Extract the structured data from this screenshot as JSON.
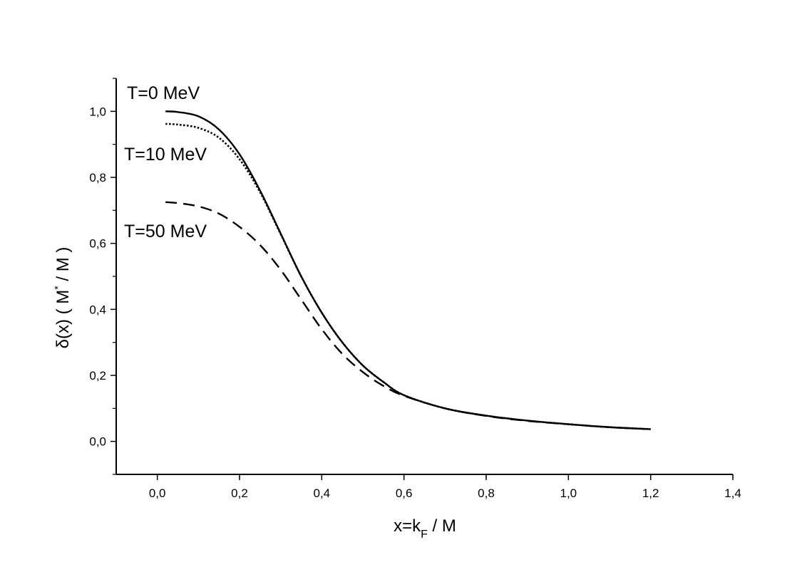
{
  "chart_data": {
    "type": "line",
    "title": "",
    "xlabel": {
      "main": "x=k",
      "sub": "F",
      "tail": " / M"
    },
    "ylabel": {
      "main": "δ(x) ( M",
      "sup": "*",
      "tail": " / M )"
    },
    "xlim": [
      -0.1,
      1.4
    ],
    "ylim": [
      -0.1,
      1.1
    ],
    "x_ticks": [
      {
        "value": 0.0,
        "label": "0,0"
      },
      {
        "value": 0.2,
        "label": "0,2"
      },
      {
        "value": 0.4,
        "label": "0,4"
      },
      {
        "value": 0.6,
        "label": "0,6"
      },
      {
        "value": 0.8,
        "label": "0,8"
      },
      {
        "value": 1.0,
        "label": "1,0"
      },
      {
        "value": 1.2,
        "label": "1,2"
      },
      {
        "value": 1.4,
        "label": "1,4"
      }
    ],
    "y_ticks": [
      {
        "value": 0.0,
        "label": "0,0"
      },
      {
        "value": 0.2,
        "label": "0,2"
      },
      {
        "value": 0.4,
        "label": "0,4"
      },
      {
        "value": 0.6,
        "label": "0,6"
      },
      {
        "value": 0.8,
        "label": "0,8"
      },
      {
        "value": 1.0,
        "label": "1,0"
      }
    ],
    "series": [
      {
        "name": "T=0 MeV",
        "style": "solid",
        "color": "#000000",
        "x": [
          0.02,
          0.05,
          0.1,
          0.15,
          0.2,
          0.25,
          0.3,
          0.35,
          0.4,
          0.45,
          0.5,
          0.55,
          0.6,
          0.7,
          0.8,
          0.9,
          1.0,
          1.1,
          1.2
        ],
        "y": [
          1.0,
          0.998,
          0.985,
          0.945,
          0.87,
          0.76,
          0.63,
          0.5,
          0.39,
          0.3,
          0.23,
          0.18,
          0.14,
          0.1,
          0.078,
          0.063,
          0.052,
          0.043,
          0.037
        ]
      },
      {
        "name": "T=10 MeV",
        "style": "dotted",
        "color": "#000000",
        "x": [
          0.02,
          0.05,
          0.1,
          0.15,
          0.2,
          0.25,
          0.3,
          0.35,
          0.4,
          0.45,
          0.5,
          0.55,
          0.6,
          0.7,
          0.8,
          0.9,
          1.0,
          1.1,
          1.2
        ],
        "y": [
          0.962,
          0.96,
          0.95,
          0.92,
          0.855,
          0.755,
          0.628,
          0.5,
          0.39,
          0.3,
          0.23,
          0.18,
          0.14,
          0.1,
          0.078,
          0.063,
          0.052,
          0.043,
          0.037
        ]
      },
      {
        "name": "T=50 MeV",
        "style": "dashed",
        "color": "#000000",
        "x": [
          0.02,
          0.05,
          0.1,
          0.15,
          0.2,
          0.25,
          0.3,
          0.35,
          0.4,
          0.45,
          0.5,
          0.55,
          0.6,
          0.7,
          0.8,
          0.9,
          1.0,
          1.1,
          1.2
        ],
        "y": [
          0.725,
          0.722,
          0.712,
          0.69,
          0.65,
          0.595,
          0.52,
          0.43,
          0.34,
          0.265,
          0.21,
          0.168,
          0.138,
          0.1,
          0.077,
          0.062,
          0.052,
          0.043,
          0.037
        ]
      }
    ]
  }
}
